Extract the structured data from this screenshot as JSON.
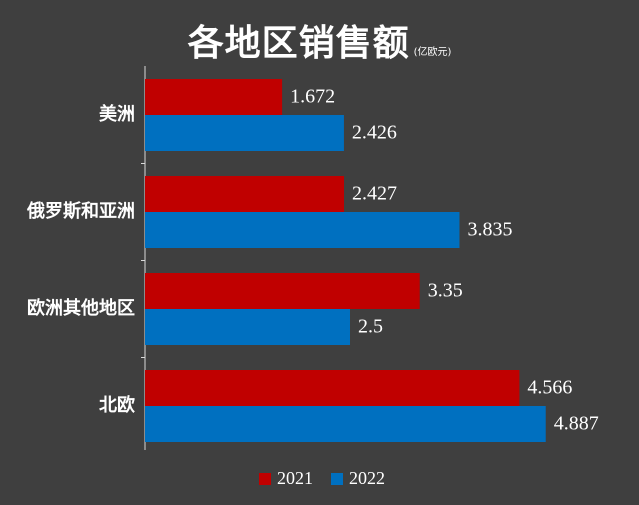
{
  "chart_data": {
    "type": "bar",
    "orientation": "horizontal",
    "title": "各地区销售额",
    "unit": "(亿欧元)",
    "categories": [
      "美洲",
      "俄罗斯和亚洲",
      "欧洲其他地区",
      "北欧"
    ],
    "series": [
      {
        "name": "2021",
        "color": "#c00000",
        "values": [
          1.672,
          2.427,
          3.35,
          4.566
        ]
      },
      {
        "name": "2022",
        "color": "#0070c0",
        "values": [
          2.426,
          3.835,
          2.5,
          4.887
        ]
      }
    ],
    "data_labels": [
      [
        "1.672",
        "2.427",
        "3.35",
        "4.566"
      ],
      [
        "2.426",
        "3.835",
        "2.5",
        "4.887"
      ]
    ],
    "xlim": [
      0,
      5.07
    ],
    "grid": false,
    "legend": "bottom"
  },
  "colors": {
    "background": "#3f3f3f",
    "axis": "#d9d9d9",
    "text": "#ffffff"
  }
}
